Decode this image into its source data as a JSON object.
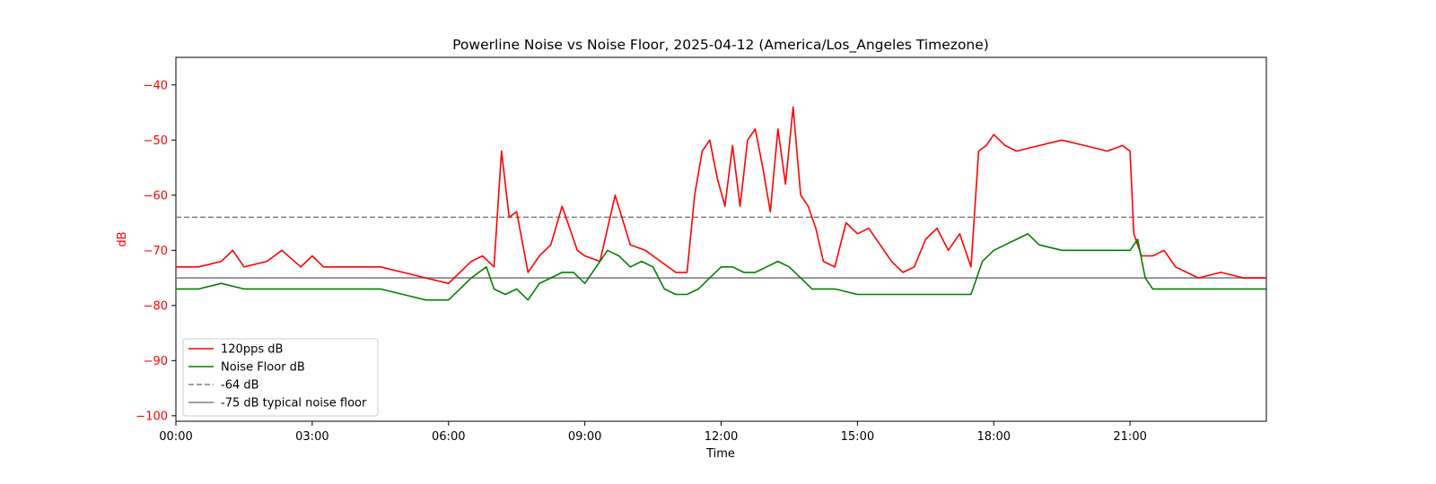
{
  "chart_data": {
    "type": "line",
    "title": "Powerline Noise vs Noise Floor, 2025-04-12 (America/Los_Angeles Timezone)",
    "xlabel": "Time",
    "ylabel": "dB",
    "ylabel_color": "#ff0000",
    "ytick_color": "#ff0000",
    "xlim": [
      "00:00",
      "24:00"
    ],
    "ylim": [
      -101,
      -35
    ],
    "xticks": [
      "00:00",
      "03:00",
      "06:00",
      "09:00",
      "12:00",
      "15:00",
      "18:00",
      "21:00"
    ],
    "yticks": [
      -40,
      -50,
      -60,
      -70,
      -80,
      -90,
      -100
    ],
    "grid": false,
    "legend_position": "lower-left",
    "series": [
      {
        "name": "120pps dB",
        "color": "#ff0000",
        "style": "solid",
        "x": [
          "00:00",
          "00:30",
          "01:00",
          "01:15",
          "01:30",
          "02:00",
          "02:20",
          "02:45",
          "03:00",
          "03:15",
          "03:30",
          "04:00",
          "04:30",
          "05:00",
          "05:30",
          "06:00",
          "06:15",
          "06:30",
          "06:45",
          "07:00",
          "07:10",
          "07:20",
          "07:30",
          "07:45",
          "08:00",
          "08:15",
          "08:30",
          "08:40",
          "08:50",
          "09:00",
          "09:20",
          "09:40",
          "10:00",
          "10:20",
          "10:40",
          "11:00",
          "11:15",
          "11:25",
          "11:35",
          "11:45",
          "11:55",
          "12:05",
          "12:15",
          "12:25",
          "12:35",
          "12:45",
          "12:55",
          "13:05",
          "13:15",
          "13:25",
          "13:35",
          "13:45",
          "13:55",
          "14:05",
          "14:15",
          "14:30",
          "14:45",
          "15:00",
          "15:15",
          "15:30",
          "15:45",
          "16:00",
          "16:15",
          "16:30",
          "16:45",
          "17:00",
          "17:15",
          "17:30",
          "17:40",
          "17:50",
          "18:00",
          "18:15",
          "18:30",
          "19:00",
          "19:30",
          "20:00",
          "20:30",
          "20:50",
          "21:00",
          "21:05",
          "21:15",
          "21:30",
          "21:45",
          "22:00",
          "22:15",
          "22:30",
          "23:00",
          "23:30",
          "24:00"
        ],
        "y": [
          -73,
          -73,
          -72,
          -70,
          -73,
          -72,
          -70,
          -73,
          -71,
          -73,
          -73,
          -73,
          -73,
          -74,
          -75,
          -76,
          -74,
          -72,
          -71,
          -73,
          -52,
          -64,
          -63,
          -74,
          -71,
          -69,
          -62,
          -66,
          -70,
          -71,
          -72,
          -60,
          -69,
          -70,
          -72,
          -74,
          -74,
          -60,
          -52,
          -50,
          -57,
          -62,
          -51,
          -62,
          -50,
          -48,
          -55,
          -63,
          -48,
          -58,
          -44,
          -60,
          -62,
          -66,
          -72,
          -73,
          -65,
          -67,
          -66,
          -69,
          -72,
          -74,
          -73,
          -68,
          -66,
          -70,
          -67,
          -73,
          -52,
          -51,
          -49,
          -51,
          -52,
          -51,
          -50,
          -51,
          -52,
          -51,
          -52,
          -67,
          -71,
          -71,
          -70,
          -73,
          -74,
          -75,
          -74,
          -75,
          -75
        ]
      },
      {
        "name": "Noise Floor dB",
        "color": "#008000",
        "style": "solid",
        "x": [
          "00:00",
          "00:30",
          "01:00",
          "01:30",
          "02:00",
          "02:30",
          "03:00",
          "03:30",
          "04:00",
          "04:30",
          "05:00",
          "05:30",
          "06:00",
          "06:15",
          "06:30",
          "06:40",
          "06:50",
          "07:00",
          "07:15",
          "07:30",
          "07:45",
          "08:00",
          "08:15",
          "08:30",
          "08:45",
          "09:00",
          "09:15",
          "09:30",
          "09:45",
          "10:00",
          "10:15",
          "10:30",
          "10:45",
          "11:00",
          "11:15",
          "11:30",
          "11:45",
          "12:00",
          "12:15",
          "12:30",
          "12:45",
          "13:00",
          "13:15",
          "13:30",
          "13:45",
          "14:00",
          "14:15",
          "14:30",
          "15:00",
          "15:30",
          "16:00",
          "16:30",
          "17:00",
          "17:30",
          "17:45",
          "18:00",
          "18:15",
          "18:30",
          "18:45",
          "19:00",
          "19:30",
          "20:00",
          "20:30",
          "21:00",
          "21:10",
          "21:20",
          "21:30",
          "22:00",
          "22:30",
          "23:00",
          "23:30",
          "24:00"
        ],
        "y": [
          -77,
          -77,
          -76,
          -77,
          -77,
          -77,
          -77,
          -77,
          -77,
          -77,
          -78,
          -79,
          -79,
          -77,
          -75,
          -74,
          -73,
          -77,
          -78,
          -77,
          -79,
          -76,
          -75,
          -74,
          -74,
          -76,
          -73,
          -70,
          -71,
          -73,
          -72,
          -73,
          -77,
          -78,
          -78,
          -77,
          -75,
          -73,
          -73,
          -74,
          -74,
          -73,
          -72,
          -73,
          -75,
          -77,
          -77,
          -77,
          -78,
          -78,
          -78,
          -78,
          -78,
          -78,
          -72,
          -70,
          -69,
          -68,
          -67,
          -69,
          -70,
          -70,
          -70,
          -70,
          -68,
          -75,
          -77,
          -77,
          -77,
          -77,
          -77,
          -77
        ]
      },
      {
        "name": "-64 dB",
        "color": "#808080",
        "style": "dashed",
        "x": [
          "00:00",
          "24:00"
        ],
        "y": [
          -64,
          -64
        ]
      },
      {
        "name": "-75 dB typical noise floor",
        "color": "#808080",
        "style": "solid",
        "x": [
          "00:00",
          "24:00"
        ],
        "y": [
          -75,
          -75
        ]
      }
    ]
  }
}
